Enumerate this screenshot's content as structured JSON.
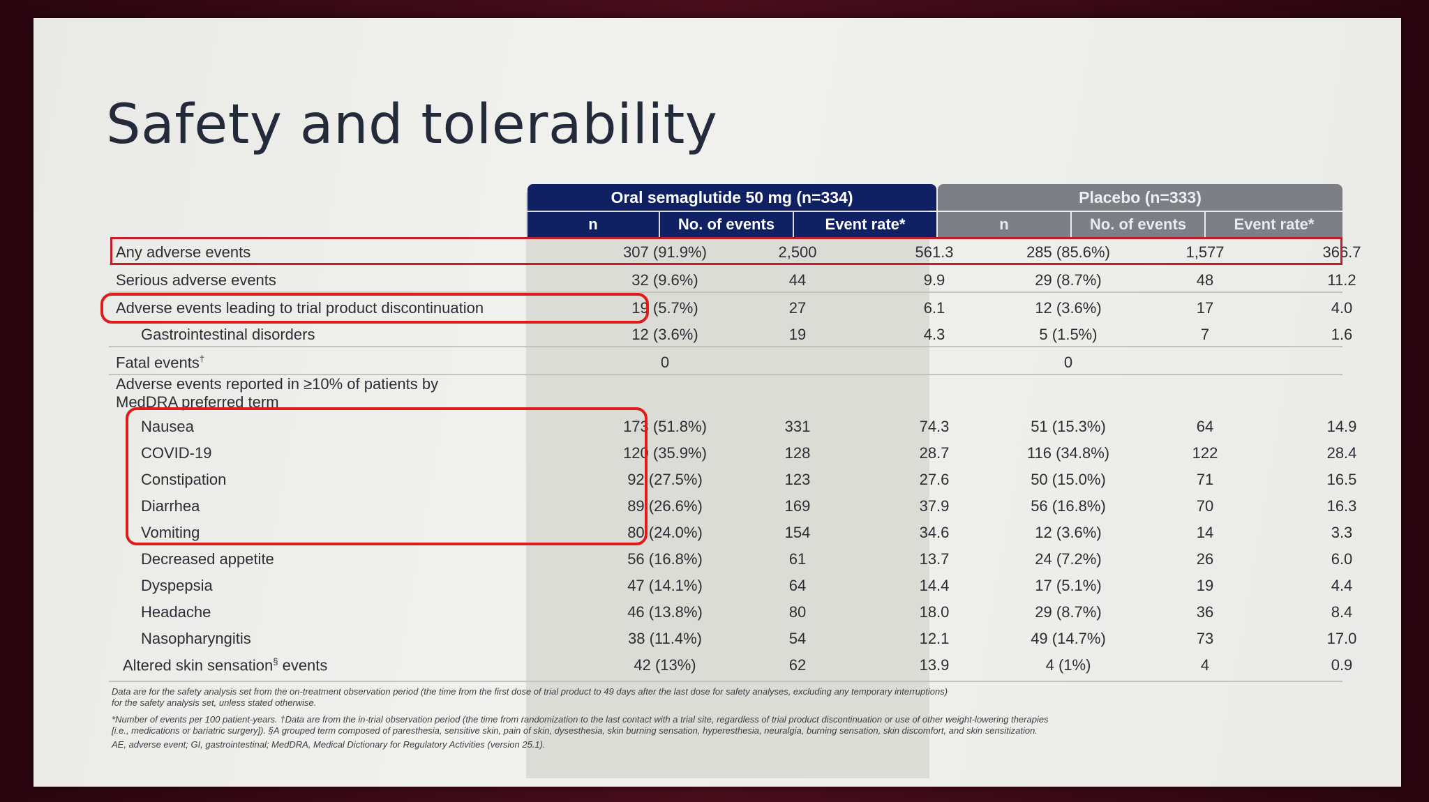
{
  "title": "Safety and tolerability",
  "groups": {
    "oral": "Oral semaglutide 50 mg (n=334)",
    "placebo": "Placebo (n=333)"
  },
  "subheaders": [
    "n",
    "No. of events",
    "Event rate*",
    "n",
    "No. of events",
    "Event rate*"
  ],
  "rows": [
    {
      "label": "Any adverse events",
      "v": [
        "307 (91.9%)",
        "2,500",
        "561.3",
        "285 (85.6%)",
        "1,577",
        "366.7"
      ]
    },
    {
      "label": "Serious adverse events",
      "v": [
        "32 (9.6%)",
        "44",
        "9.9",
        "29 (8.7%)",
        "48",
        "11.2"
      ]
    },
    {
      "label": "Adverse events leading to trial product discontinuation",
      "v": [
        "19 (5.7%)",
        "27",
        "6.1",
        "12 (3.6%)",
        "17",
        "4.0"
      ]
    },
    {
      "label": "Gastrointestinal disorders",
      "v": [
        "12 (3.6%)",
        "19",
        "4.3",
        "5 (1.5%)",
        "7",
        "1.6"
      ]
    },
    {
      "label": "Fatal events",
      "sup": "†",
      "v": [
        "0",
        "",
        "",
        "0",
        "",
        ""
      ]
    },
    {
      "label": "Adverse events reported in ≥10% of patients by",
      "label2": "MedDRA preferred term"
    },
    {
      "label": "Nausea",
      "v": [
        "173 (51.8%)",
        "331",
        "74.3",
        "51 (15.3%)",
        "64",
        "14.9"
      ]
    },
    {
      "label": "COVID-19",
      "v": [
        "120 (35.9%)",
        "128",
        "28.7",
        "116 (34.8%)",
        "122",
        "28.4"
      ]
    },
    {
      "label": "Constipation",
      "v": [
        "92 (27.5%)",
        "123",
        "27.6",
        "50 (15.0%)",
        "71",
        "16.5"
      ]
    },
    {
      "label": "Diarrhea",
      "v": [
        "89 (26.6%)",
        "169",
        "37.9",
        "56 (16.8%)",
        "70",
        "16.3"
      ]
    },
    {
      "label": "Vomiting",
      "v": [
        "80 (24.0%)",
        "154",
        "34.6",
        "12 (3.6%)",
        "14",
        "3.3"
      ]
    },
    {
      "label": "Decreased appetite",
      "v": [
        "56 (16.8%)",
        "61",
        "13.7",
        "24 (7.2%)",
        "26",
        "6.0"
      ]
    },
    {
      "label": "Dyspepsia",
      "v": [
        "47 (14.1%)",
        "64",
        "14.4",
        "17 (5.1%)",
        "19",
        "4.4"
      ]
    },
    {
      "label": "Headache",
      "v": [
        "46 (13.8%)",
        "80",
        "18.0",
        "29 (8.7%)",
        "36",
        "8.4"
      ]
    },
    {
      "label": "Nasopharyngitis",
      "v": [
        "38 (11.4%)",
        "54",
        "12.1",
        "49 (14.7%)",
        "73",
        "17.0"
      ]
    },
    {
      "label": "Altered skin sensation",
      "sup": "§",
      "label3": " events",
      "v": [
        "42 (13%)",
        "62",
        "13.9",
        "4 (1%)",
        "4",
        "0.9"
      ]
    }
  ],
  "footnotes": [
    "Data are for the safety analysis set from the on-treatment observation period (the time from the first dose of trial product to 49 days after the last dose for safety analyses, excluding any temporary interruptions)",
    "for the safety analysis set, unless stated otherwise.",
    "*Number of events per 100 patient-years. †Data are from the in-trial observation period (the time from randomization to the last contact with a trial site, regardless of trial product discontinuation or use of other weight-lowering therapies",
    "[i.e., medications or bariatric surgery]). §A grouped term composed of paresthesia, sensitive skin, pain of skin, dysesthesia, skin burning sensation, hyperesthesia, neuralgia, burning sensation, skin discomfort, and skin sensitization.",
    "AE, adverse event; GI, gastrointestinal; MedDRA, Medical Dictionary for Regulatory Activities (version 25.1)."
  ]
}
